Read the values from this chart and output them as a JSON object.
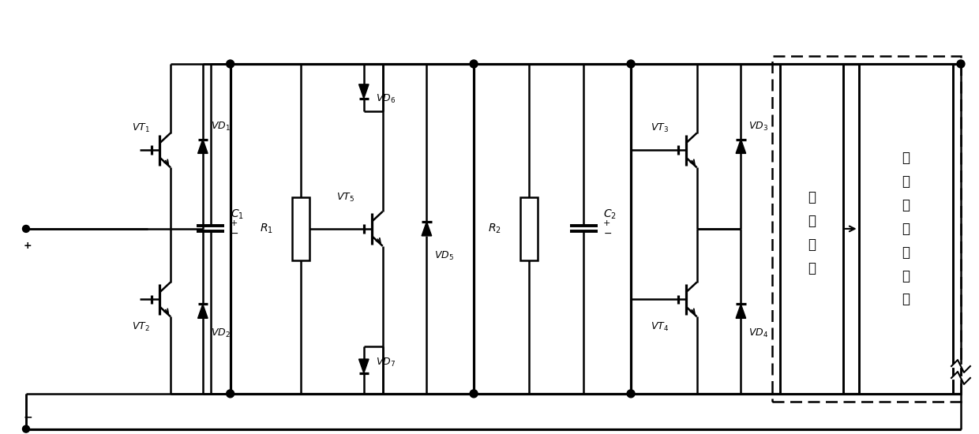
{
  "bg_color": "#ffffff",
  "line_color": "#000000",
  "lw": 1.8,
  "fig_width": 12.4,
  "fig_height": 5.5,
  "dpi": 100,
  "xlim": [
    0,
    124
  ],
  "ylim": [
    0,
    55
  ]
}
